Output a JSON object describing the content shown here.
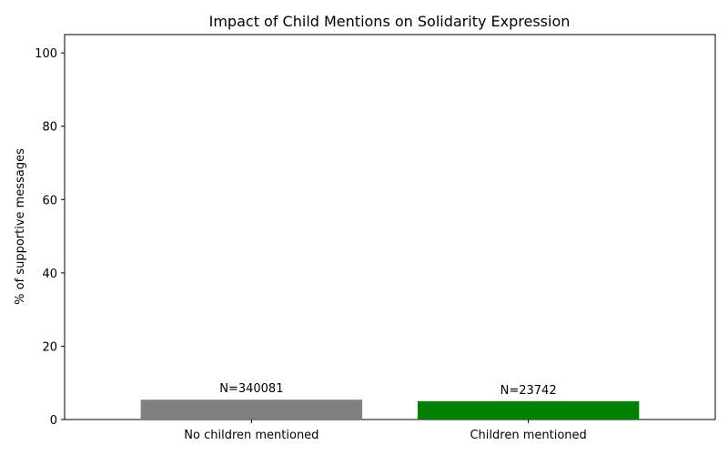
{
  "chart_data": {
    "type": "bar",
    "title": "Impact of Child Mentions on Solidarity Expression",
    "xlabel": "",
    "ylabel": "% of supportive messages",
    "categories": [
      "No children mentioned",
      "Children mentioned"
    ],
    "values": [
      5.4,
      5.0
    ],
    "data_labels": [
      "N=340081",
      "N=23742"
    ],
    "colors": [
      "#808080",
      "#008000"
    ],
    "ylim": [
      0,
      105
    ],
    "yticks": [
      0,
      20,
      40,
      60,
      80,
      100
    ],
    "grid": false,
    "legend": "none"
  }
}
